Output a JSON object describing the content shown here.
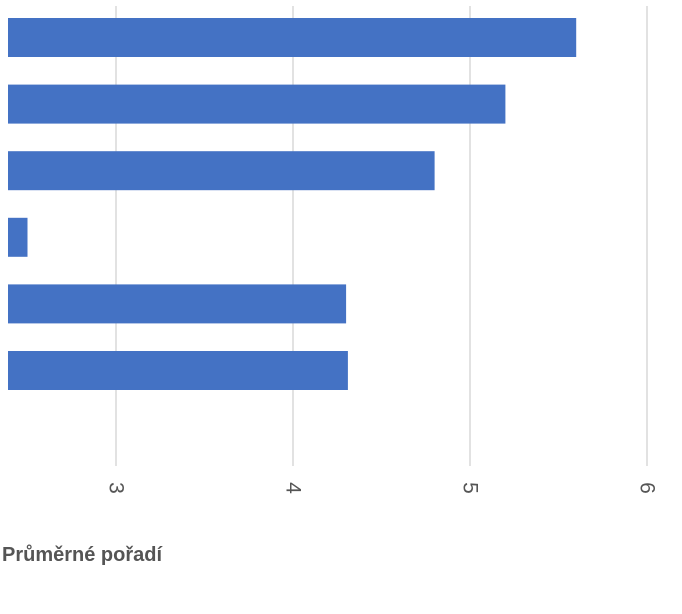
{
  "chart_data": {
    "type": "bar",
    "orientation": "horizontal",
    "title": "",
    "xlabel": "Průměrné pořadí",
    "ylabel": "",
    "categories": [
      "",
      "",
      "",
      "",
      "",
      ""
    ],
    "values": [
      5.6,
      5.2,
      4.8,
      2.5,
      4.3,
      4.31
    ],
    "xlim": [
      2.4,
      6.0
    ],
    "x_ticks": [
      3,
      4,
      5,
      6
    ],
    "x_tick_labels": [
      "3",
      "4",
      "5",
      "6"
    ],
    "grid": "vertical",
    "legend": "none",
    "colors": {
      "bar": "#4472c4",
      "grid": "#d9d9d9",
      "tick_label": "#555555",
      "axis_title": "#555555"
    }
  }
}
